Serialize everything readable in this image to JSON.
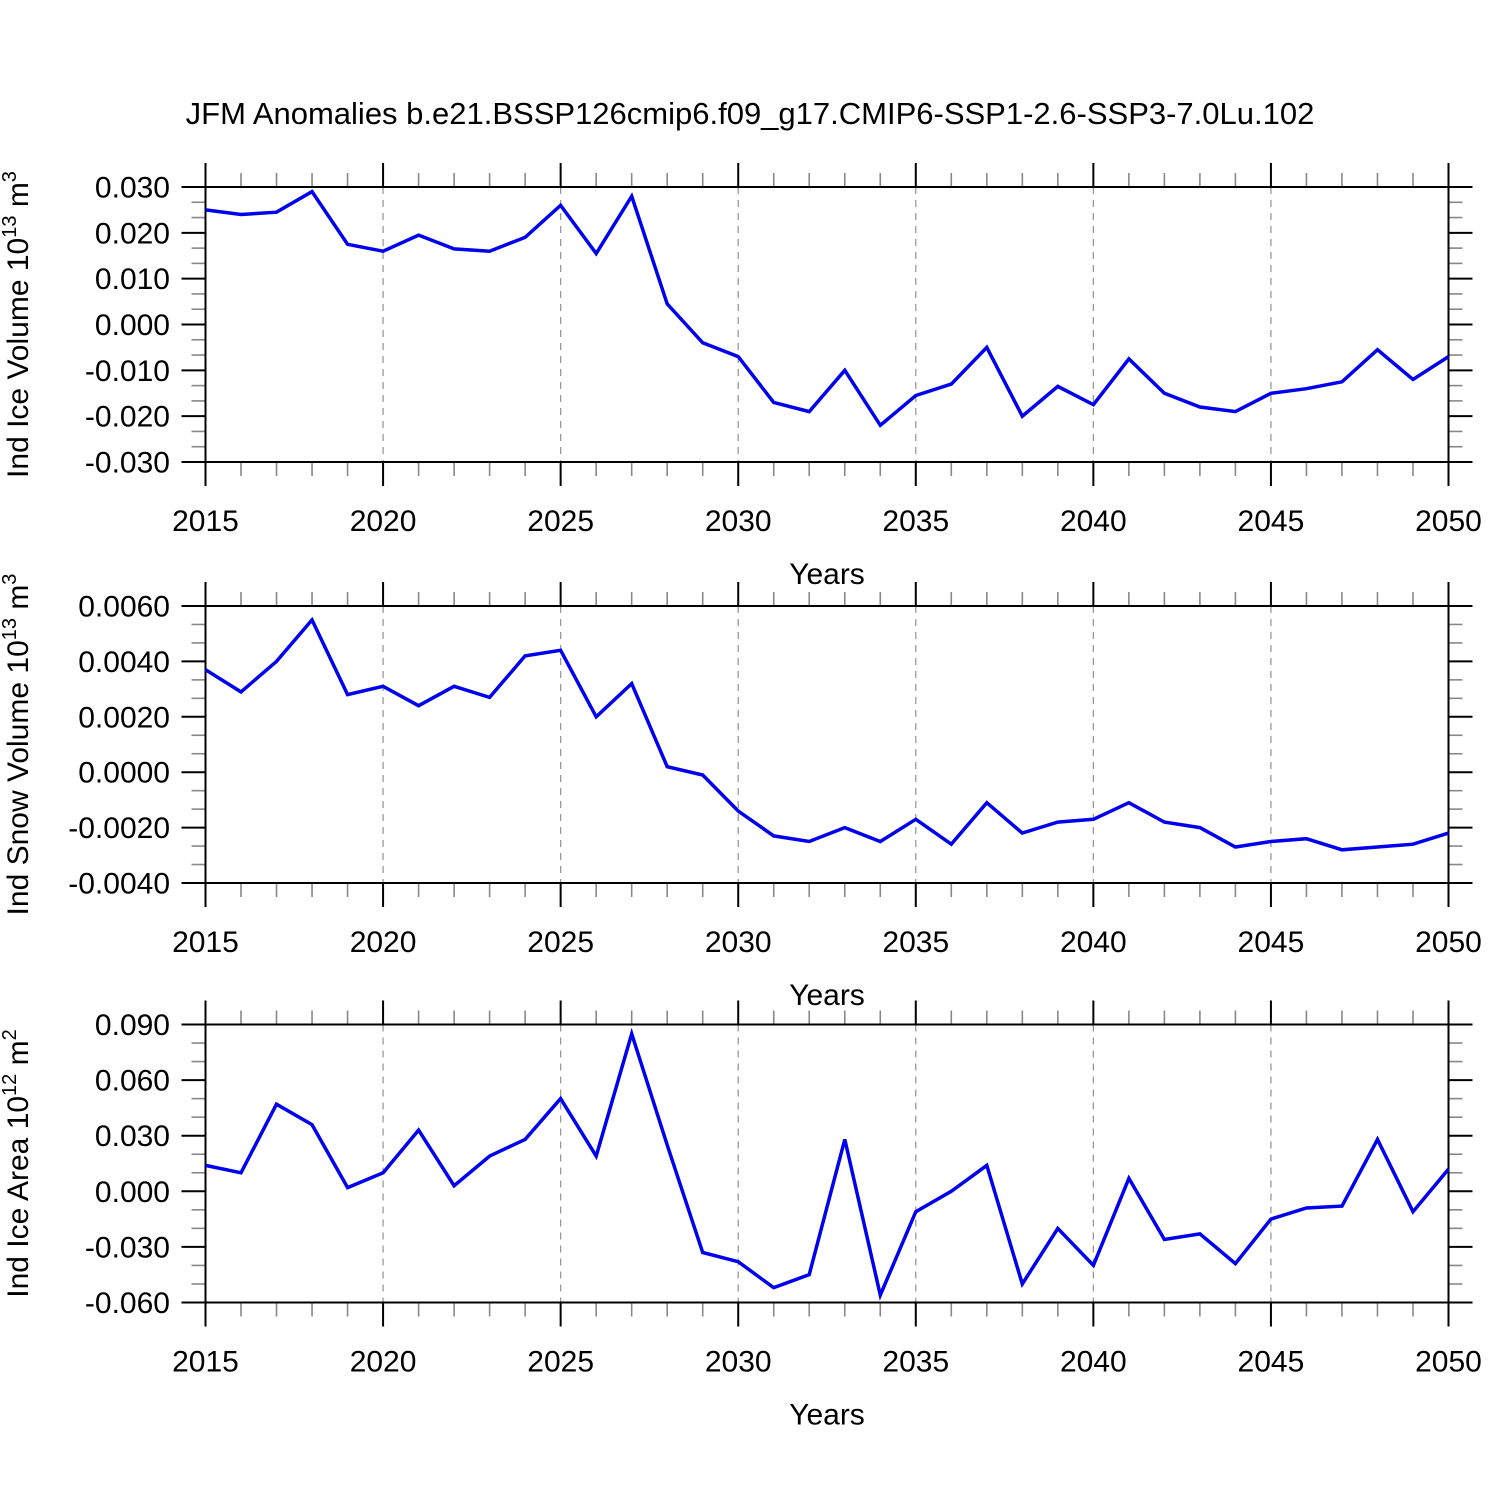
{
  "title": "JFM Anomalies b.e21.BSSP126cmip6.f09_g17.CMIP6-SSP1-2.6-SSP3-7.0Lu.102",
  "colors": {
    "line": "#0000ee",
    "frame": "#000000",
    "major_tick": "#000000",
    "minor_tick": "#888888",
    "gridline": "#999999",
    "text": "#000000",
    "background": "#ffffff"
  },
  "chart_data": [
    {
      "type": "line",
      "id": "ice-volume",
      "title": "",
      "xlabel": "Years",
      "ylabel": "Ind Ice Volume 10^13 m^3",
      "ylabel_parts": [
        {
          "t": "Ind Ice Volume 10"
        },
        {
          "t": "13",
          "sup": true
        },
        {
          "t": " m"
        },
        {
          "t": "3",
          "sup": true
        }
      ],
      "xlim": [
        2015,
        2050
      ],
      "ylim": [
        -0.03,
        0.03
      ],
      "xticks": [
        2015,
        2020,
        2025,
        2030,
        2035,
        2040,
        2045,
        2050
      ],
      "xtick_labels": [
        "2015",
        "2020",
        "2025",
        "2030",
        "2035",
        "2040",
        "2045",
        "2050"
      ],
      "x_minor_step": 1,
      "yticks": [
        0.03,
        0.02,
        0.01,
        0.0,
        -0.01,
        -0.02,
        -0.03
      ],
      "ytick_labels": [
        "0.030",
        "0.020",
        "0.010",
        "0.000",
        "-0.010",
        "-0.020",
        "-0.030"
      ],
      "y_minor_per_major": 2,
      "grid_years": [
        2020,
        2025,
        2030,
        2035,
        2040,
        2045
      ],
      "x": [
        2015,
        2016,
        2017,
        2018,
        2019,
        2020,
        2021,
        2022,
        2023,
        2024,
        2025,
        2026,
        2027,
        2028,
        2029,
        2030,
        2031,
        2032,
        2033,
        2034,
        2035,
        2036,
        2037,
        2038,
        2039,
        2040,
        2041,
        2042,
        2043,
        2044,
        2045,
        2046,
        2047,
        2048,
        2049,
        2050
      ],
      "values": [
        0.025,
        0.024,
        0.0245,
        0.029,
        0.0175,
        0.016,
        0.0195,
        0.0165,
        0.016,
        0.019,
        0.026,
        0.0155,
        0.028,
        0.0045,
        -0.004,
        -0.007,
        -0.017,
        -0.019,
        -0.01,
        -0.022,
        -0.0155,
        -0.013,
        -0.005,
        -0.02,
        -0.0135,
        -0.0175,
        -0.0075,
        -0.015,
        -0.018,
        -0.019,
        -0.015,
        -0.014,
        -0.0125,
        -0.0055,
        -0.012,
        -0.007
      ],
      "grid": "x-dashed",
      "legend": "none"
    },
    {
      "type": "line",
      "id": "snow-volume",
      "title": "",
      "xlabel": "Years",
      "ylabel": "Ind Snow Volume 10^13 m^3",
      "ylabel_parts": [
        {
          "t": "Ind Snow Volume 10"
        },
        {
          "t": "13",
          "sup": true
        },
        {
          "t": " m"
        },
        {
          "t": "3",
          "sup": true
        }
      ],
      "xlim": [
        2015,
        2050
      ],
      "ylim": [
        -0.004,
        0.006
      ],
      "xticks": [
        2015,
        2020,
        2025,
        2030,
        2035,
        2040,
        2045,
        2050
      ],
      "xtick_labels": [
        "2015",
        "2020",
        "2025",
        "2030",
        "2035",
        "2040",
        "2045",
        "2050"
      ],
      "x_minor_step": 1,
      "yticks": [
        0.006,
        0.004,
        0.002,
        0.0,
        -0.002,
        -0.004
      ],
      "ytick_labels": [
        "0.0060",
        "0.0040",
        "0.0020",
        "0.0000",
        "-0.0020",
        "-0.0040"
      ],
      "y_minor_per_major": 2,
      "grid_years": [
        2020,
        2025,
        2030,
        2035,
        2040,
        2045
      ],
      "x": [
        2015,
        2016,
        2017,
        2018,
        2019,
        2020,
        2021,
        2022,
        2023,
        2024,
        2025,
        2026,
        2027,
        2028,
        2029,
        2030,
        2031,
        2032,
        2033,
        2034,
        2035,
        2036,
        2037,
        2038,
        2039,
        2040,
        2041,
        2042,
        2043,
        2044,
        2045,
        2046,
        2047,
        2048,
        2049,
        2050
      ],
      "values": [
        0.0037,
        0.0029,
        0.004,
        0.0055,
        0.0028,
        0.0031,
        0.0024,
        0.0031,
        0.0027,
        0.0042,
        0.0044,
        0.002,
        0.0032,
        0.0002,
        -0.0001,
        -0.0014,
        -0.0023,
        -0.0025,
        -0.002,
        -0.0025,
        -0.0017,
        -0.0026,
        -0.0011,
        -0.0022,
        -0.0018,
        -0.0017,
        -0.0011,
        -0.0018,
        -0.002,
        -0.0027,
        -0.0025,
        -0.0024,
        -0.0028,
        -0.0027,
        -0.0026,
        -0.0022
      ],
      "grid": "x-dashed",
      "legend": "none"
    },
    {
      "type": "line",
      "id": "ice-area",
      "title": "",
      "xlabel": "Years",
      "ylabel": "Ind Ice Area 10^12 m^2",
      "ylabel_parts": [
        {
          "t": "Ind Ice Area 10"
        },
        {
          "t": "12",
          "sup": true
        },
        {
          "t": " m"
        },
        {
          "t": "2",
          "sup": true
        }
      ],
      "xlim": [
        2015,
        2050
      ],
      "ylim": [
        -0.06,
        0.09
      ],
      "xticks": [
        2015,
        2020,
        2025,
        2030,
        2035,
        2040,
        2045,
        2050
      ],
      "xtick_labels": [
        "2015",
        "2020",
        "2025",
        "2030",
        "2035",
        "2040",
        "2045",
        "2050"
      ],
      "x_minor_step": 1,
      "yticks": [
        0.09,
        0.06,
        0.03,
        0.0,
        -0.03,
        -0.06
      ],
      "ytick_labels": [
        "0.090",
        "0.060",
        "0.030",
        "0.000",
        "-0.030",
        "-0.060"
      ],
      "y_minor_per_major": 2,
      "grid_years": [
        2020,
        2025,
        2030,
        2035,
        2040,
        2045
      ],
      "x": [
        2015,
        2016,
        2017,
        2018,
        2019,
        2020,
        2021,
        2022,
        2023,
        2024,
        2025,
        2026,
        2027,
        2028,
        2029,
        2030,
        2031,
        2032,
        2033,
        2034,
        2035,
        2036,
        2037,
        2038,
        2039,
        2040,
        2041,
        2042,
        2043,
        2044,
        2045,
        2046,
        2047,
        2048,
        2049,
        2050
      ],
      "values": [
        0.014,
        0.01,
        0.047,
        0.036,
        0.002,
        0.01,
        0.033,
        0.003,
        0.019,
        0.028,
        0.05,
        0.019,
        0.085,
        0.025,
        -0.033,
        -0.038,
        -0.052,
        -0.045,
        0.028,
        -0.056,
        -0.011,
        0.0,
        0.014,
        -0.05,
        -0.02,
        -0.04,
        0.007,
        -0.026,
        -0.023,
        -0.039,
        -0.015,
        -0.009,
        -0.008,
        0.028,
        -0.011,
        0.012
      ],
      "grid": "x-dashed",
      "legend": "none"
    }
  ]
}
